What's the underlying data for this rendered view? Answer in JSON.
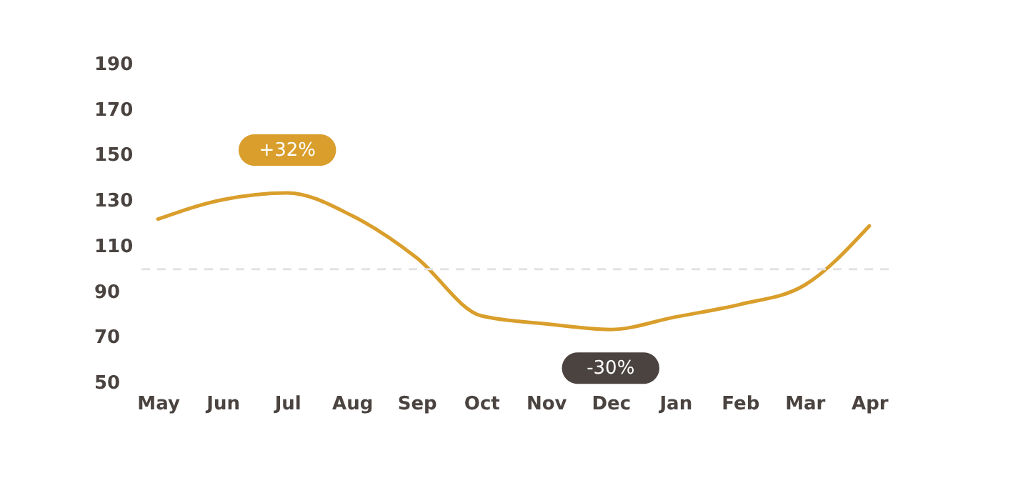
{
  "chart_data": {
    "type": "line",
    "categories": [
      "May",
      "Jun",
      "Jul",
      "Aug",
      "Sep",
      "Oct",
      "Nov",
      "Dec",
      "Jan",
      "Feb",
      "Mar",
      "Apr"
    ],
    "series": [
      {
        "color": "#d99e2b",
        "values": [
          122,
          130.5,
          133.5,
          123.5,
          105,
          79.5,
          76,
          73.5,
          79,
          84.5,
          93,
          119
        ]
      }
    ],
    "ylim": [
      50,
      190
    ],
    "yticks": [
      50,
      70,
      90,
      110,
      130,
      150,
      170,
      190
    ],
    "ref_lines": [
      {
        "axis": "y",
        "value": 100,
        "color": "#e3e3e3",
        "line_style": "dashed"
      }
    ],
    "annotations": [
      {
        "text": "+32%",
        "x": "Jul",
        "y": 133.5
      },
      {
        "text": "-30%",
        "x": "Dec",
        "y": 73.5
      }
    ],
    "grid": false,
    "marker": "none",
    "line_style": "solid"
  }
}
